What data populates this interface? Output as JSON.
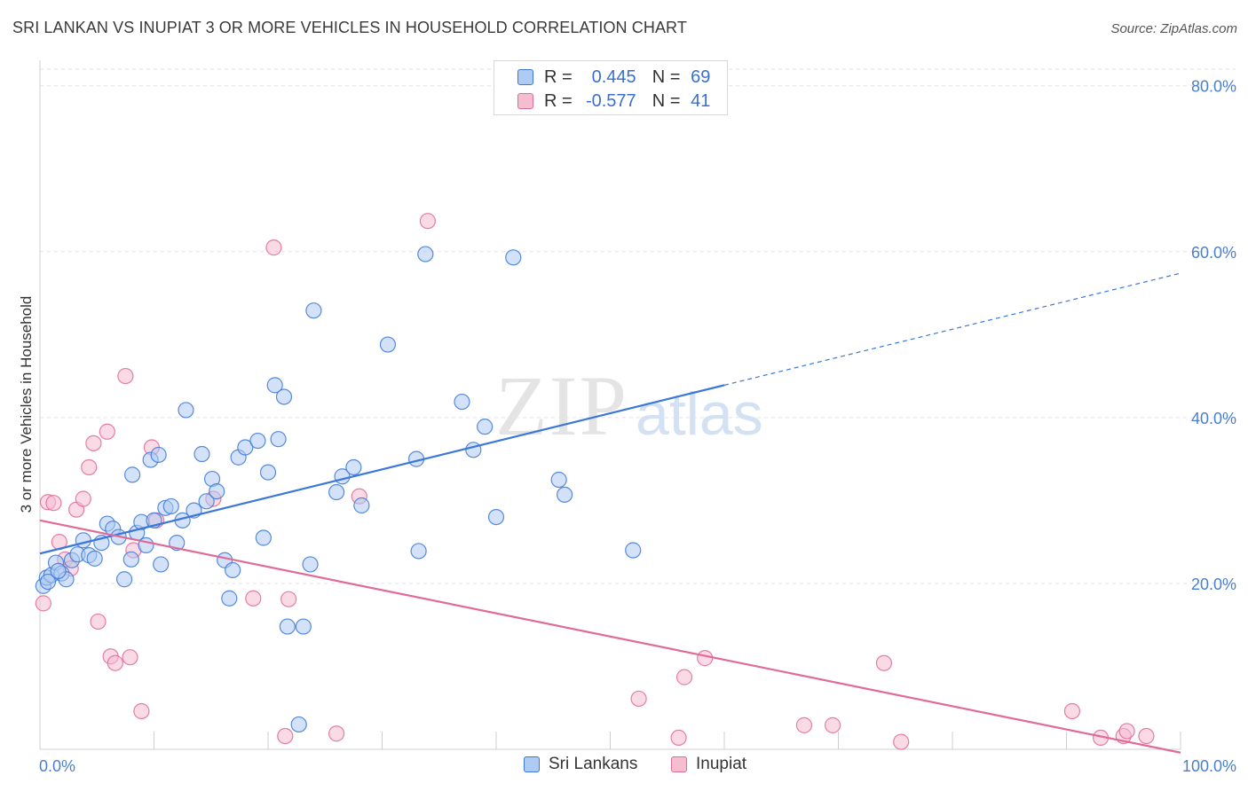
{
  "header": {
    "title": "SRI LANKAN VS INUPIAT 3 OR MORE VEHICLES IN HOUSEHOLD CORRELATION CHART",
    "source": "Source: ZipAtlas.com"
  },
  "legend": {
    "r_label": "R =",
    "n_label": "N =",
    "rows": [
      {
        "r": "0.445",
        "n": "69"
      },
      {
        "r": "-0.577",
        "n": "41"
      }
    ]
  },
  "watermark": {
    "zip": "ZIP",
    "atlas": "atlas"
  },
  "colors": {
    "blue": "#3b78d8",
    "blue_fill": "#aecbf3",
    "pink": "#e06a98",
    "pink_fill": "#f6bcd0",
    "tick": "#4a7fd0"
  },
  "chart_data": {
    "type": "scatter",
    "xlabel": "",
    "ylabel": "3 or more Vehicles in Household",
    "xlim": [
      0,
      100
    ],
    "ylim": [
      0,
      82
    ],
    "x_tick_labels": [
      {
        "value": 0,
        "label": "0.0%"
      },
      {
        "value": 100,
        "label": "100.0%"
      }
    ],
    "y_tick_labels": [
      {
        "value": 20,
        "label": "20.0%"
      },
      {
        "value": 40,
        "label": "40.0%"
      },
      {
        "value": 60,
        "label": "60.0%"
      },
      {
        "value": 80,
        "label": "80.0%"
      }
    ],
    "grid": true,
    "legend_position": "top-center",
    "series": [
      {
        "name": "Sri Lankans",
        "color": "#3b78d8",
        "points": [
          [
            0.3,
            19.7
          ],
          [
            0.6,
            20.7
          ],
          [
            1.0,
            21.0
          ],
          [
            1.4,
            22.5
          ],
          [
            1.9,
            21.2
          ],
          [
            2.3,
            20.5
          ],
          [
            2.8,
            22.8
          ],
          [
            3.3,
            23.5
          ],
          [
            3.8,
            25.2
          ],
          [
            4.3,
            23.4
          ],
          [
            4.8,
            23.0
          ],
          [
            5.4,
            24.9
          ],
          [
            5.9,
            27.2
          ],
          [
            6.4,
            26.6
          ],
          [
            6.9,
            25.6
          ],
          [
            7.4,
            20.5
          ],
          [
            8.0,
            22.9
          ],
          [
            8.1,
            33.1
          ],
          [
            8.5,
            26.1
          ],
          [
            8.9,
            27.4
          ],
          [
            9.3,
            24.6
          ],
          [
            9.7,
            34.9
          ],
          [
            10.0,
            27.6
          ],
          [
            10.4,
            35.5
          ],
          [
            10.6,
            22.3
          ],
          [
            11.0,
            29.1
          ],
          [
            11.5,
            29.3
          ],
          [
            12.0,
            24.9
          ],
          [
            12.5,
            27.6
          ],
          [
            12.8,
            40.9
          ],
          [
            13.5,
            28.8
          ],
          [
            14.2,
            35.6
          ],
          [
            14.6,
            29.9
          ],
          [
            15.1,
            32.6
          ],
          [
            15.5,
            31.1
          ],
          [
            16.2,
            22.8
          ],
          [
            16.6,
            18.2
          ],
          [
            16.9,
            21.6
          ],
          [
            17.4,
            35.2
          ],
          [
            18.0,
            36.4
          ],
          [
            19.1,
            37.2
          ],
          [
            19.6,
            25.5
          ],
          [
            20.0,
            33.4
          ],
          [
            20.6,
            43.9
          ],
          [
            20.9,
            37.4
          ],
          [
            21.4,
            42.5
          ],
          [
            21.7,
            14.8
          ],
          [
            22.7,
            3.0
          ],
          [
            23.1,
            14.8
          ],
          [
            23.7,
            22.3
          ],
          [
            24.0,
            52.9
          ],
          [
            26.0,
            31.0
          ],
          [
            26.5,
            32.9
          ],
          [
            27.5,
            34.0
          ],
          [
            28.2,
            29.4
          ],
          [
            30.5,
            48.8
          ],
          [
            33.0,
            35.0
          ],
          [
            33.2,
            23.9
          ],
          [
            33.8,
            59.7
          ],
          [
            37.0,
            41.9
          ],
          [
            38.0,
            36.1
          ],
          [
            39.0,
            38.9
          ],
          [
            40.0,
            28.0
          ],
          [
            41.5,
            59.3
          ],
          [
            45.5,
            32.5
          ],
          [
            46.0,
            30.7
          ],
          [
            52.0,
            24.0
          ],
          [
            0.7,
            20.2
          ],
          [
            1.6,
            21.5
          ]
        ]
      },
      {
        "name": "Inupiat",
        "color": "#e06a98",
        "points": [
          [
            0.3,
            17.6
          ],
          [
            0.7,
            29.8
          ],
          [
            1.2,
            29.7
          ],
          [
            1.7,
            25.0
          ],
          [
            2.2,
            22.9
          ],
          [
            2.7,
            21.8
          ],
          [
            3.2,
            28.9
          ],
          [
            3.8,
            30.2
          ],
          [
            4.3,
            34.0
          ],
          [
            4.7,
            36.9
          ],
          [
            5.1,
            15.4
          ],
          [
            5.9,
            38.3
          ],
          [
            6.2,
            11.2
          ],
          [
            6.6,
            10.4
          ],
          [
            7.5,
            45.0
          ],
          [
            7.9,
            11.1
          ],
          [
            8.2,
            24.0
          ],
          [
            8.9,
            4.6
          ],
          [
            9.8,
            36.4
          ],
          [
            10.2,
            27.6
          ],
          [
            15.2,
            30.2
          ],
          [
            18.7,
            18.2
          ],
          [
            20.5,
            60.5
          ],
          [
            21.5,
            1.6
          ],
          [
            21.8,
            18.1
          ],
          [
            26.0,
            1.9
          ],
          [
            28.0,
            30.5
          ],
          [
            34.0,
            63.7
          ],
          [
            52.5,
            6.1
          ],
          [
            56.0,
            1.4
          ],
          [
            56.5,
            8.7
          ],
          [
            58.3,
            11.0
          ],
          [
            67.0,
            2.9
          ],
          [
            69.5,
            2.9
          ],
          [
            74.0,
            10.4
          ],
          [
            75.5,
            0.9
          ],
          [
            90.5,
            4.6
          ],
          [
            93.0,
            1.4
          ],
          [
            95.0,
            1.6
          ],
          [
            95.3,
            2.2
          ],
          [
            97.0,
            1.6
          ]
        ]
      }
    ],
    "trend_lines": [
      {
        "series": "Sri Lankans",
        "x0": 0,
        "y0": 23.6,
        "x1": 60,
        "y1": 43.9,
        "dashed_to_x": 100,
        "dashed_to_y": 57.4
      },
      {
        "series": "Inupiat",
        "x0": 0,
        "y0": 27.6,
        "x1": 100,
        "y1": -0.4
      }
    ]
  }
}
